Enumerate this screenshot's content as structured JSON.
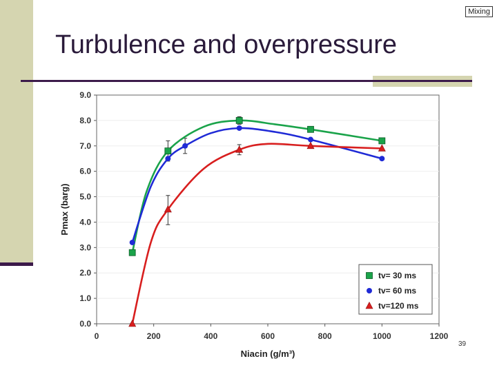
{
  "header": {
    "tag": "Mixing",
    "title": "Turbulence and overpressure",
    "page_number": "39"
  },
  "colors": {
    "accent": "#d5d5b0",
    "rule": "#3c1a4a",
    "series_30": "#1aa34a",
    "series_60": "#1f2ad6",
    "series_120": "#d81e1e"
  },
  "chart_data": {
    "type": "line",
    "xlabel": "Niacin (g/m³)",
    "ylabel": "Pmax (barg)",
    "xlim": [
      0,
      1200
    ],
    "ylim": [
      0.0,
      9.0
    ],
    "xticks": [
      0,
      200,
      400,
      600,
      800,
      1000,
      1200
    ],
    "yticks": [
      "0.0",
      "1.0",
      "2.0",
      "3.0",
      "4.0",
      "5.0",
      "6.0",
      "7.0",
      "8.0",
      "9.0"
    ],
    "legend_position": "bottom-right",
    "series": [
      {
        "name": "tv= 30 ms",
        "marker": "square",
        "color": "#1aa34a",
        "x": [
          125,
          250,
          500,
          750,
          1000
        ],
        "y": [
          2.8,
          6.8,
          8.0,
          7.65,
          7.2
        ],
        "curve": [
          [
            125,
            2.8
          ],
          [
            175,
            5.2
          ],
          [
            250,
            6.8
          ],
          [
            375,
            7.75
          ],
          [
            500,
            8.0
          ],
          [
            625,
            7.85
          ],
          [
            750,
            7.65
          ],
          [
            1000,
            7.2
          ]
        ]
      },
      {
        "name": "tv= 60 ms",
        "marker": "circle",
        "color": "#1f2ad6",
        "x": [
          125,
          250,
          310,
          500,
          750,
          1000
        ],
        "y": [
          3.2,
          6.5,
          7.0,
          7.7,
          7.25,
          6.5
        ],
        "curve": [
          [
            125,
            3.2
          ],
          [
            190,
            5.4
          ],
          [
            250,
            6.5
          ],
          [
            310,
            7.0
          ],
          [
            400,
            7.5
          ],
          [
            500,
            7.7
          ],
          [
            625,
            7.55
          ],
          [
            750,
            7.25
          ],
          [
            1000,
            6.5
          ]
        ]
      },
      {
        "name": "tv=120 ms",
        "marker": "triangle",
        "color": "#d81e1e",
        "x": [
          125,
          250,
          500,
          750,
          1000
        ],
        "y": [
          0.0,
          4.5,
          6.85,
          7.0,
          6.9
        ],
        "curve": [
          [
            125,
            0.0
          ],
          [
            190,
            3.2
          ],
          [
            250,
            4.5
          ],
          [
            375,
            6.1
          ],
          [
            500,
            6.85
          ],
          [
            600,
            7.08
          ],
          [
            750,
            7.0
          ],
          [
            1000,
            6.9
          ]
        ]
      }
    ],
    "error_bars": [
      {
        "x": 250,
        "low": 6.4,
        "high": 7.2
      },
      {
        "x": 250,
        "low": 3.9,
        "high": 5.05
      },
      {
        "x": 310,
        "low": 6.7,
        "high": 7.3
      },
      {
        "x": 500,
        "low": 6.65,
        "high": 7.05
      },
      {
        "x": 500,
        "low": 7.85,
        "high": 8.15
      }
    ]
  }
}
